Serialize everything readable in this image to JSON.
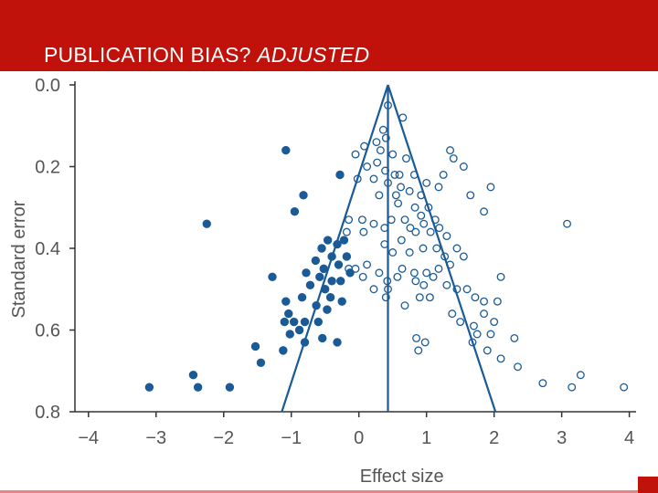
{
  "slide": {
    "title_main": "PUBLICATION BIAS?",
    "title_emph": "ADJUSTED",
    "accent_color": "#c0120b"
  },
  "chart_data": {
    "type": "scatter",
    "title": "",
    "xlabel": "Effect size",
    "ylabel": "Standard error",
    "xlim": [
      -4.2,
      4.1
    ],
    "ylim": [
      0.0,
      0.8
    ],
    "y_inverted": true,
    "x_ticks": [
      "−4",
      "−3",
      "−2",
      "−1",
      "0",
      "1",
      "2",
      "3",
      "4"
    ],
    "x_tick_values": [
      -4,
      -3,
      -2,
      -1,
      0,
      1,
      2,
      3,
      4
    ],
    "y_ticks": [
      "0.0",
      "0.2",
      "0.4",
      "0.6",
      "0.8"
    ],
    "y_tick_values": [
      0.0,
      0.2,
      0.4,
      0.6,
      0.8
    ],
    "grid": false,
    "color": "#1a5a96",
    "funnel": {
      "center": 0.43,
      "apex_se": 0.0,
      "left_at_base": -1.14,
      "right_at_base": 2.02,
      "base_se": 0.8
    },
    "series": [
      {
        "marker": "filled",
        "points": [
          [
            -1.08,
            0.16
          ],
          [
            -0.28,
            0.22
          ],
          [
            -0.82,
            0.27
          ],
          [
            -0.95,
            0.31
          ],
          [
            -2.25,
            0.34
          ],
          [
            -0.55,
            0.4
          ],
          [
            -0.46,
            0.38
          ],
          [
            -0.32,
            0.39
          ],
          [
            -0.22,
            0.38
          ],
          [
            -0.64,
            0.43
          ],
          [
            -0.4,
            0.42
          ],
          [
            -0.52,
            0.45
          ],
          [
            -0.3,
            0.44
          ],
          [
            -0.18,
            0.42
          ],
          [
            -0.13,
            0.46
          ],
          [
            -0.78,
            0.46
          ],
          [
            -0.72,
            0.49
          ],
          [
            -0.58,
            0.47
          ],
          [
            -0.5,
            0.5
          ],
          [
            -0.4,
            0.48
          ],
          [
            -0.27,
            0.48
          ],
          [
            -0.42,
            0.52
          ],
          [
            -0.63,
            0.54
          ],
          [
            -0.84,
            0.52
          ],
          [
            -0.47,
            0.55
          ],
          [
            -0.25,
            0.53
          ],
          [
            -1.28,
            0.47
          ],
          [
            -1.08,
            0.53
          ],
          [
            -1.04,
            0.56
          ],
          [
            -0.96,
            0.58
          ],
          [
            -1.1,
            0.58
          ],
          [
            -0.8,
            0.58
          ],
          [
            -0.6,
            0.58
          ],
          [
            -0.54,
            0.62
          ],
          [
            -0.88,
            0.6
          ],
          [
            -0.8,
            0.63
          ],
          [
            -0.32,
            0.63
          ],
          [
            -1.02,
            0.61
          ],
          [
            -1.12,
            0.65
          ],
          [
            -1.53,
            0.64
          ],
          [
            -1.45,
            0.68
          ],
          [
            -2.45,
            0.71
          ],
          [
            -3.1,
            0.74
          ],
          [
            -2.38,
            0.74
          ],
          [
            -1.91,
            0.74
          ]
        ]
      },
      {
        "marker": "open",
        "points": [
          [
            0.43,
            0.05
          ],
          [
            0.65,
            0.08
          ],
          [
            0.36,
            0.11
          ],
          [
            0.4,
            0.13
          ],
          [
            0.08,
            0.15
          ],
          [
            0.26,
            0.14
          ],
          [
            0.32,
            0.16
          ],
          [
            0.5,
            0.17
          ],
          [
            -0.05,
            0.17
          ],
          [
            0.7,
            0.18
          ],
          [
            0.12,
            0.2
          ],
          [
            0.27,
            0.19
          ],
          [
            0.39,
            0.21
          ],
          [
            0.53,
            0.22
          ],
          [
            0.6,
            0.22
          ],
          [
            -0.02,
            0.23
          ],
          [
            0.22,
            0.23
          ],
          [
            0.43,
            0.24
          ],
          [
            0.62,
            0.25
          ],
          [
            0.82,
            0.22
          ],
          [
            1.0,
            0.24
          ],
          [
            1.18,
            0.25
          ],
          [
            0.92,
            0.27
          ],
          [
            0.75,
            0.26
          ],
          [
            0.55,
            0.27
          ],
          [
            0.3,
            0.27
          ],
          [
            1.25,
            0.22
          ],
          [
            0.58,
            0.29
          ],
          [
            0.83,
            0.3
          ],
          [
            1.03,
            0.3
          ],
          [
            0.92,
            0.32
          ],
          [
            1.13,
            0.33
          ],
          [
            0.68,
            0.33
          ],
          [
            0.48,
            0.33
          ],
          [
            0.22,
            0.34
          ],
          [
            0.05,
            0.33
          ],
          [
            -0.15,
            0.33
          ],
          [
            -0.18,
            0.36
          ],
          [
            0.07,
            0.36
          ],
          [
            0.38,
            0.35
          ],
          [
            0.76,
            0.35
          ],
          [
            0.96,
            0.34
          ],
          [
            1.19,
            0.35
          ],
          [
            0.84,
            0.36
          ],
          [
            1.06,
            0.36
          ],
          [
            1.3,
            0.37
          ],
          [
            0.63,
            0.38
          ],
          [
            0.38,
            0.39
          ],
          [
            0.5,
            0.41
          ],
          [
            0.75,
            0.41
          ],
          [
            0.95,
            0.4
          ],
          [
            1.15,
            0.4
          ],
          [
            1.27,
            0.42
          ],
          [
            1.45,
            0.4
          ],
          [
            1.55,
            0.42
          ],
          [
            1.35,
            0.44
          ],
          [
            1.18,
            0.45
          ],
          [
            1.0,
            0.46
          ],
          [
            0.82,
            0.46
          ],
          [
            0.64,
            0.45
          ],
          [
            0.57,
            0.47
          ],
          [
            0.42,
            0.48
          ],
          [
            0.3,
            0.46
          ],
          [
            0.12,
            0.44
          ],
          [
            0.06,
            0.47
          ],
          [
            -0.15,
            0.45
          ],
          [
            -0.05,
            0.45
          ],
          [
            0.84,
            0.48
          ],
          [
            0.96,
            0.49
          ],
          [
            1.1,
            0.47
          ],
          [
            1.3,
            0.49
          ],
          [
            1.45,
            0.5
          ],
          [
            1.6,
            0.5
          ],
          [
            1.72,
            0.52
          ],
          [
            1.85,
            0.53
          ],
          [
            2.1,
            0.47
          ],
          [
            2.05,
            0.53
          ],
          [
            1.05,
            0.52
          ],
          [
            0.9,
            0.52
          ],
          [
            0.68,
            0.54
          ],
          [
            0.22,
            0.5
          ],
          [
            0.43,
            0.5
          ],
          [
            0.4,
            0.52
          ],
          [
            1.38,
            0.56
          ],
          [
            1.5,
            0.58
          ],
          [
            1.7,
            0.59
          ],
          [
            1.85,
            0.56
          ],
          [
            2.0,
            0.58
          ],
          [
            1.95,
            0.61
          ],
          [
            1.75,
            0.61
          ],
          [
            1.68,
            0.63
          ],
          [
            0.98,
            0.63
          ],
          [
            0.85,
            0.62
          ],
          [
            0.88,
            0.65
          ],
          [
            1.9,
            0.65
          ],
          [
            2.3,
            0.62
          ],
          [
            2.1,
            0.67
          ],
          [
            2.35,
            0.69
          ],
          [
            1.95,
            0.25
          ],
          [
            1.65,
            0.27
          ],
          [
            1.85,
            0.31
          ],
          [
            3.08,
            0.34
          ],
          [
            2.72,
            0.73
          ],
          [
            3.15,
            0.74
          ],
          [
            3.28,
            0.71
          ],
          [
            3.92,
            0.74
          ],
          [
            1.35,
            0.16
          ],
          [
            1.4,
            0.18
          ],
          [
            1.55,
            0.2
          ]
        ]
      }
    ]
  }
}
